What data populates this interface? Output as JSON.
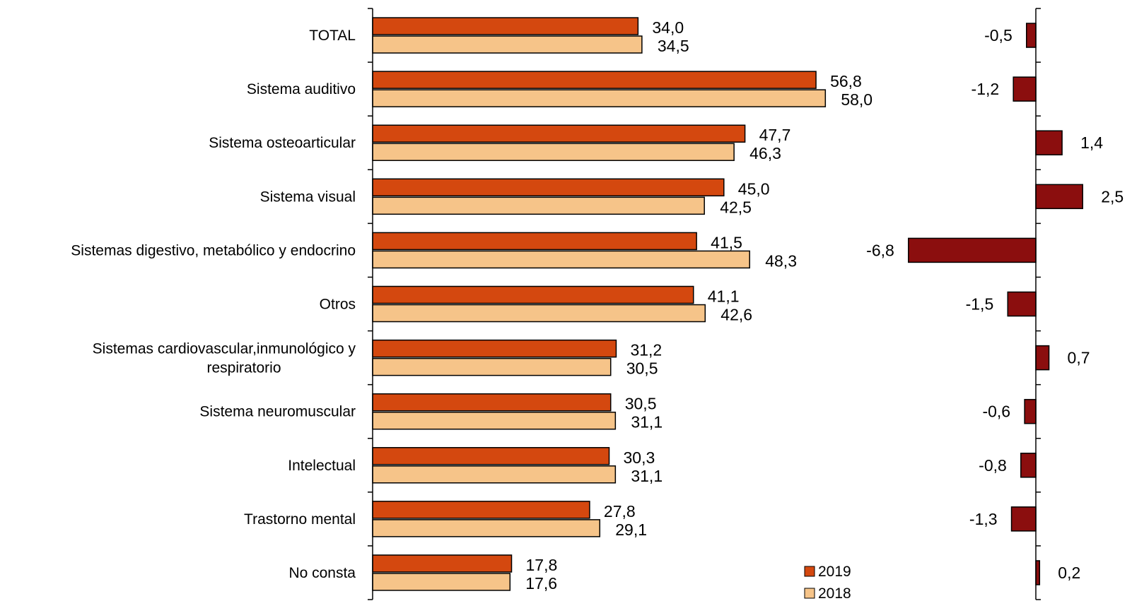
{
  "chart_data": [
    {
      "type": "bar",
      "orientation": "horizontal",
      "categories": [
        "TOTAL",
        "Sistema auditivo",
        "Sistema osteoarticular",
        "Sistema visual",
        "Sistemas digestivo, metabólico y endocrino",
        "Otros",
        "Sistemas cardiovascular,inmunológico y respiratorio",
        "Sistema neuromuscular",
        "Intelectual",
        "Trastorno mental",
        "No consta"
      ],
      "series": [
        {
          "name": "2019",
          "color": "#d4480f",
          "values": [
            34.0,
            56.8,
            47.7,
            45.0,
            41.5,
            41.1,
            31.2,
            30.5,
            30.3,
            27.8,
            17.8
          ],
          "labels": [
            "34,0",
            "56,8",
            "47,7",
            "45,0",
            "41,5",
            "41,1",
            "31,2",
            "30,5",
            "30,3",
            "27,8",
            "17,8"
          ]
        },
        {
          "name": "2018",
          "color": "#f6c489",
          "values": [
            34.5,
            58.0,
            46.3,
            42.5,
            48.3,
            42.6,
            30.5,
            31.1,
            31.1,
            29.1,
            17.6
          ],
          "labels": [
            "34,5",
            "58,0",
            "46,3",
            "42,5",
            "48,3",
            "42,6",
            "30,5",
            "31,1",
            "31,1",
            "29,1",
            "17,6"
          ]
        }
      ],
      "legend": {
        "position": "bottom-right",
        "entries": [
          "2019",
          "2018"
        ]
      },
      "xlim": [
        0,
        90
      ],
      "grid": false
    },
    {
      "type": "bar",
      "orientation": "horizontal",
      "categories": [
        "TOTAL",
        "Sistema auditivo",
        "Sistema osteoarticular",
        "Sistema visual",
        "Sistemas digestivo, metabólico y endocrino",
        "Otros",
        "Sistemas cardiovascular,inmunológico y respiratorio",
        "Sistema neuromuscular",
        "Intelectual",
        "Trastorno mental",
        "No consta"
      ],
      "series": [
        {
          "color": "#8b0e0e",
          "values": [
            -0.5,
            -1.2,
            1.4,
            2.5,
            -6.8,
            -1.5,
            0.7,
            -0.6,
            -0.8,
            -1.3,
            0.2
          ],
          "labels": [
            "-0,5",
            "-1,2",
            "1,4",
            "2,5",
            "-6,8",
            "-1,5",
            "0,7",
            "-0,6",
            "-0,8",
            "-1,3",
            "0,2"
          ]
        }
      ],
      "xlim": [
        -7,
        3
      ],
      "grid": false
    }
  ]
}
